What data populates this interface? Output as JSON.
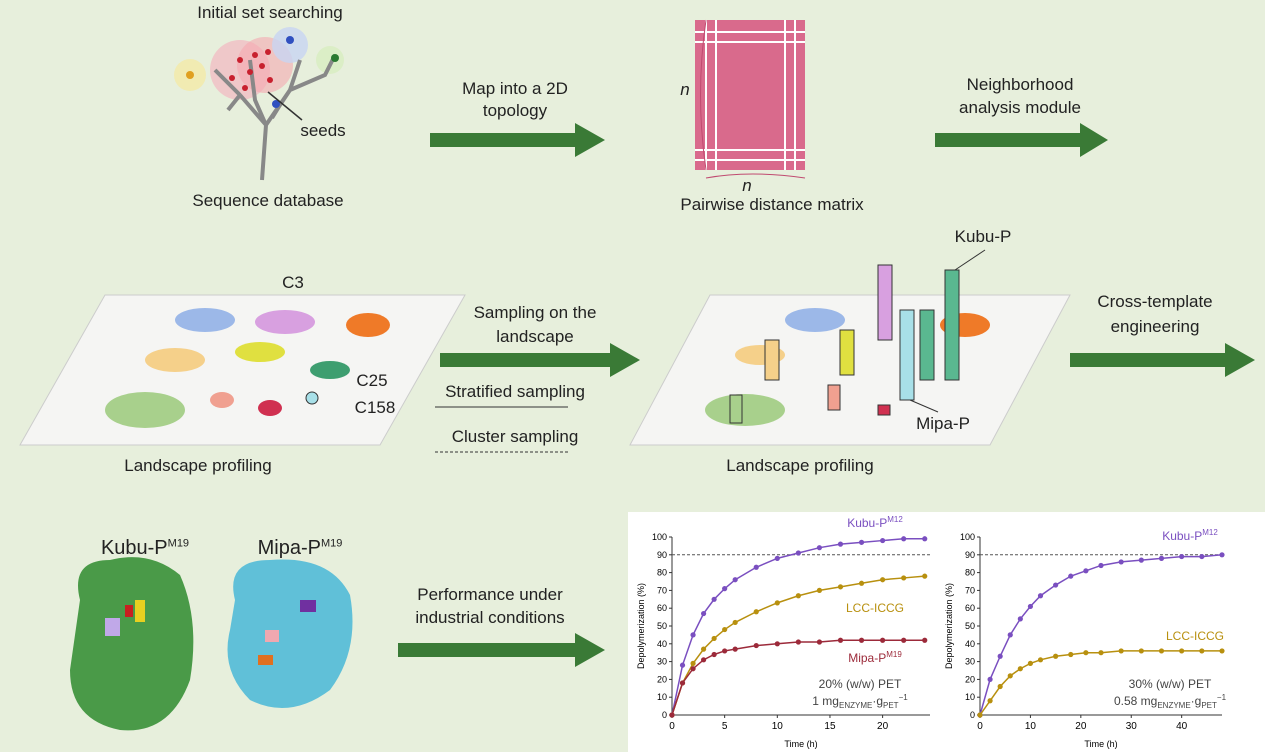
{
  "diagram": {
    "search_title": "Initial set searching",
    "seeds": "seeds",
    "database": "Sequence database",
    "map_arrow": [
      "Map into a 2D",
      "topology"
    ],
    "matrix_n_left": "n",
    "matrix_n_bottom": "n",
    "matrix_caption": "Pairwise distance matrix",
    "neighborhood_arrow": [
      "Neighborhood",
      "analysis module"
    ],
    "cluster_c3": "C3",
    "cluster_c25": "C25",
    "cluster_c158": "C158",
    "landscape_left": "Landscape profiling",
    "sampling_arrow": [
      "Sampling on the",
      "landscape"
    ],
    "stratified": "Stratified sampling",
    "cluster_sampling": "Cluster sampling",
    "kubu_pointer": "Kubu-P",
    "mipa_pointer": "Mipa-P",
    "landscape_right": "Landscape profiling",
    "cross_arrow": [
      "Cross-template",
      "engineering"
    ],
    "protein_kubu": {
      "name": "Kubu-P",
      "superscript": "M19"
    },
    "protein_mipa": {
      "name": "Mipa-P",
      "superscript": "M19"
    },
    "performance_arrow": [
      "Performance under",
      "industrial conditions"
    ]
  },
  "chart_data": [
    {
      "type": "line",
      "x_label": "Time (h)",
      "y_label": "Depolymerization (%)",
      "xlim": [
        0,
        24.5
      ],
      "xticks": [
        0,
        5,
        10,
        15,
        20
      ],
      "ylim": [
        0,
        100
      ],
      "yticks": [
        0,
        10,
        20,
        30,
        40,
        50,
        60,
        70,
        80,
        90,
        100
      ],
      "ref_line": 90,
      "annotation": [
        "20% (w/w) PET",
        "1 mg",
        "ENZYME",
        "·g",
        "PET",
        "−1"
      ],
      "x": [
        0,
        1,
        2,
        3,
        4,
        5,
        6,
        8,
        10,
        12,
        14,
        16,
        18,
        20,
        22,
        24
      ],
      "series": [
        {
          "name": "Kubu-P",
          "superscript": "M12",
          "color": "#7a4fc0",
          "values": [
            0,
            28,
            45,
            57,
            65,
            71,
            76,
            83,
            88,
            91,
            94,
            96,
            97,
            98,
            99,
            99
          ]
        },
        {
          "name": "LCC-ICCG",
          "color": "#b8900f",
          "values": [
            0,
            18,
            29,
            37,
            43,
            48,
            52,
            58,
            63,
            67,
            70,
            72,
            74,
            76,
            77,
            78
          ]
        },
        {
          "name": "Mipa-P",
          "superscript": "M19",
          "color": "#9c2a3a",
          "values": [
            0,
            18,
            26,
            31,
            34,
            36,
            37,
            39,
            40,
            41,
            41,
            42,
            42,
            42,
            42,
            42
          ]
        }
      ]
    },
    {
      "type": "line",
      "x_label": "Time (h)",
      "y_label": "Depolymerization (%)",
      "xlim": [
        0,
        48
      ],
      "xticks": [
        0,
        10,
        20,
        30,
        40
      ],
      "ylim": [
        0,
        100
      ],
      "yticks": [
        0,
        10,
        20,
        30,
        40,
        50,
        60,
        70,
        80,
        90,
        100
      ],
      "ref_line": 90,
      "annotation": [
        "30% (w/w) PET",
        "0.58 mg",
        "ENZYME",
        "·g",
        "PET",
        "−1"
      ],
      "x": [
        0,
        2,
        4,
        6,
        8,
        10,
        12,
        15,
        18,
        21,
        24,
        28,
        32,
        36,
        40,
        44,
        48
      ],
      "series": [
        {
          "name": "Kubu-P",
          "superscript": "M12",
          "color": "#7a4fc0",
          "values": [
            0,
            20,
            33,
            45,
            54,
            61,
            67,
            73,
            78,
            81,
            84,
            86,
            87,
            88,
            89,
            89,
            90
          ]
        },
        {
          "name": "LCC-ICCG",
          "color": "#b8900f",
          "values": [
            0,
            8,
            16,
            22,
            26,
            29,
            31,
            33,
            34,
            35,
            35,
            36,
            36,
            36,
            36,
            36,
            36
          ]
        }
      ]
    }
  ]
}
